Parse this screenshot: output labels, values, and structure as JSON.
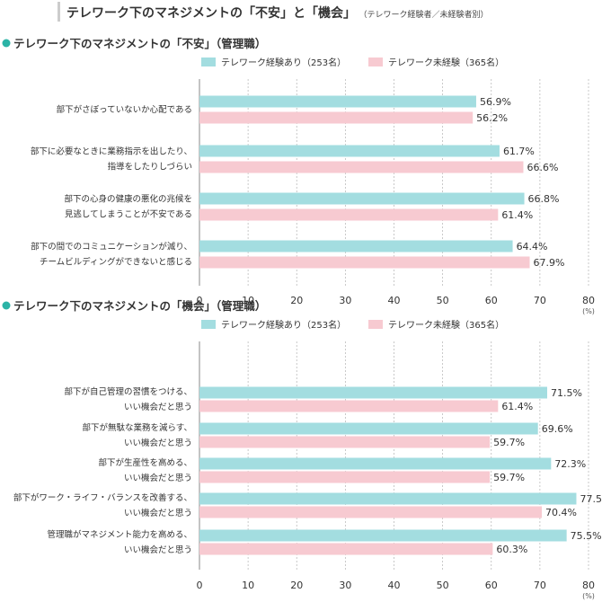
{
  "page": {
    "title": "テレワーク下のマネジメントの「不安」と「機会」",
    "subtitle": "（テレワーク経験者／未経験者別）"
  },
  "colors": {
    "exp": "#a3dde0",
    "noexp": "#f7cad1",
    "bullet": "#2bb3a6",
    "grid": "#bbbbbb"
  },
  "chart_data": [
    {
      "type": "bar",
      "orientation": "horizontal",
      "title": "テレワーク下のマネジメントの「不安」（管理職）",
      "categories": [
        [
          "部下がさぼっていないか心配である"
        ],
        [
          "部下に必要なときに業務指示を出したり、",
          "指導をしたりしづらい"
        ],
        [
          "部下の心身の健康の悪化の兆候を",
          "見逃してしまうことが不安である"
        ],
        [
          "部下の間でのコミュニケーションが減り、",
          "チームビルディングができないと感じる"
        ]
      ],
      "series": [
        {
          "name": "テレワーク経験あり（253名）",
          "values": [
            56.9,
            61.7,
            66.8,
            64.4
          ],
          "color": "#a3dde0"
        },
        {
          "name": "テレワーク未経験（365名）",
          "values": [
            56.2,
            66.6,
            61.4,
            67.9
          ],
          "color": "#f7cad1"
        }
      ],
      "xlim": [
        0,
        80
      ],
      "xticks": [
        0,
        10,
        20,
        30,
        40,
        50,
        60,
        70,
        80
      ],
      "xunit": "(%)",
      "legend": "top"
    },
    {
      "type": "bar",
      "orientation": "horizontal",
      "title": "テレワーク下のマネジメントの「機会」（管理職）",
      "categories": [
        [
          "部下が自己管理の習慣をつける、",
          "いい機会だと思う"
        ],
        [
          "部下が無駄な業務を減らす、",
          "いい機会だと思う"
        ],
        [
          "部下が生産性を高める、",
          "いい機会だと思う"
        ],
        [
          "部下がワーク・ライフ・バランスを改善する、",
          "いい機会だと思う"
        ],
        [
          "管理職がマネジメント能力を高める、",
          "いい機会だと思う"
        ]
      ],
      "series": [
        {
          "name": "テレワーク経験あり（253名）",
          "values": [
            71.5,
            69.6,
            72.3,
            77.5,
            75.5
          ],
          "color": "#a3dde0"
        },
        {
          "name": "テレワーク未経験（365名）",
          "values": [
            61.4,
            59.7,
            59.7,
            70.4,
            60.3
          ],
          "color": "#f7cad1"
        }
      ],
      "xlim": [
        0,
        80
      ],
      "xticks": [
        0,
        10,
        20,
        30,
        40,
        50,
        60,
        70,
        80
      ],
      "xunit": "(%)",
      "legend": "top"
    }
  ]
}
